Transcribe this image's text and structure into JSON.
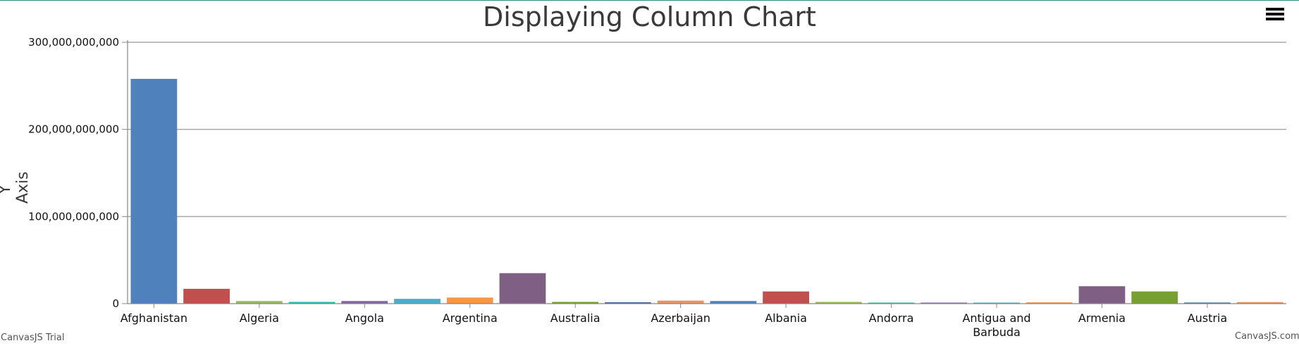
{
  "chart_data": {
    "type": "bar",
    "title": "Displaying Column Chart",
    "ylabel": "Y Axis",
    "xlabel": "",
    "ylim": [
      0,
      300000000000
    ],
    "yticks": [
      "0",
      "100,000,000,000",
      "200,000,000,000",
      "300,000,000,000"
    ],
    "grid": true,
    "categories": [
      "Afghanistan",
      "",
      "Algeria",
      "",
      "Angola",
      "",
      "Argentina",
      "",
      "Australia",
      "",
      "Azerbaijan",
      "",
      "Albania",
      "",
      "Andorra",
      "",
      "Antigua and Barbuda",
      "",
      "Armenia",
      "",
      "Austria",
      ""
    ],
    "values": [
      258000000000,
      17000000000,
      3000000000,
      2000000000,
      3000000000,
      5500000000,
      7000000000,
      35000000000,
      2000000000,
      1500000000,
      3500000000,
      3000000000,
      14000000000,
      2000000000,
      1000000000,
      1200000000,
      500000000,
      1500000000,
      20000000000,
      14000000000,
      300000000,
      1800000000
    ],
    "colors": [
      "#4f81bc",
      "#c0504e",
      "#9bbb58",
      "#23bfaa",
      "#8064a1",
      "#4aacc5",
      "#f79647",
      "#7f6084",
      "#77a033",
      "#33558b",
      "#e59566",
      "#4f81bc",
      "#c0504e",
      "#9bbb58",
      "#23bfaa",
      "#8064a1",
      "#4aacc5",
      "#f79647",
      "#7f6084",
      "#77a033",
      "#33558b",
      "#e59566"
    ]
  },
  "toolbar": {
    "menu_icon": "hamburger-menu-icon"
  },
  "credits": {
    "left": "CanvasJS Trial",
    "right": "CanvasJS.com"
  }
}
